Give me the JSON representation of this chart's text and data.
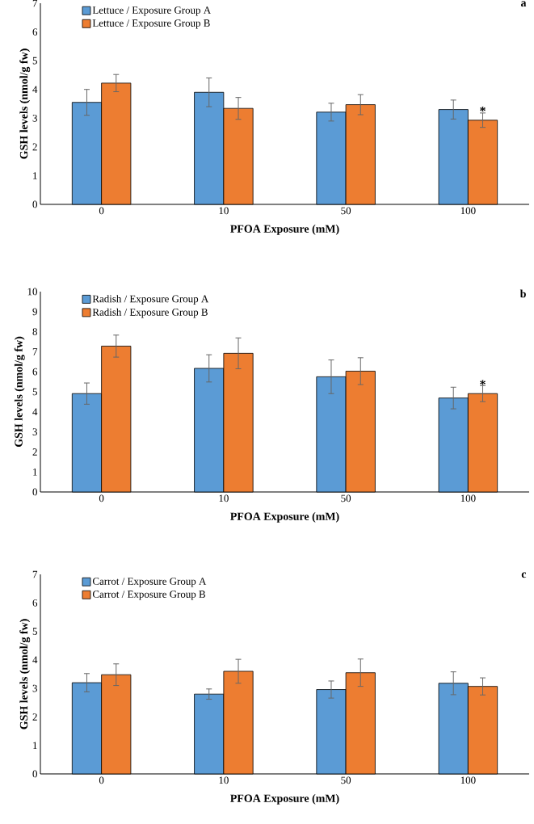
{
  "chart_data": [
    {
      "type": "bar",
      "title": "a",
      "xlabel": "PFOA Exposure (mM)",
      "ylabel": "GSH levels (nmol/g fw)",
      "categories": [
        "0",
        "10",
        "50",
        "100"
      ],
      "series": [
        {
          "name": "Lettuce / Exposure Group A",
          "color": "#5b9bd5",
          "values": [
            3.55,
            3.9,
            3.21,
            3.3
          ],
          "errors": [
            0.45,
            0.5,
            0.31,
            0.33
          ]
        },
        {
          "name": "Lettuce / Exposure Group B",
          "color": "#ed7d31",
          "values": [
            4.22,
            3.34,
            3.47,
            2.93
          ],
          "errors": [
            0.3,
            0.38,
            0.35,
            0.25
          ]
        }
      ],
      "ylim": [
        0,
        7
      ],
      "yticks": [
        0,
        1,
        2,
        3,
        4,
        5,
        6,
        7
      ],
      "legend": "top left",
      "annotations": [
        "*"
      ]
    },
    {
      "type": "bar",
      "title": "b",
      "xlabel": "PFOA Exposure (mM)",
      "ylabel": "GSH levels (nmol/g fw)",
      "categories": [
        "0",
        "10",
        "50",
        "100"
      ],
      "series": [
        {
          "name": "Radish / Exposure Group A",
          "color": "#5b9bd5",
          "values": [
            4.91,
            6.17,
            5.75,
            4.69
          ],
          "errors": [
            0.53,
            0.68,
            0.84,
            0.54
          ]
        },
        {
          "name": "Radish / Exposure Group B",
          "color": "#ed7d31",
          "values": [
            7.28,
            6.92,
            6.03,
            4.91
          ],
          "errors": [
            0.55,
            0.77,
            0.67,
            0.4
          ]
        }
      ],
      "ylim": [
        0,
        10
      ],
      "yticks": [
        0,
        1,
        2,
        3,
        4,
        5,
        6,
        7,
        8,
        9,
        10
      ],
      "legend": "top left",
      "annotations": [
        "*"
      ]
    },
    {
      "type": "bar",
      "title": "c",
      "xlabel": "PFOA Exposure (mM)",
      "ylabel": "GSH levels (nmol/g fw)",
      "categories": [
        "0",
        "10",
        "50",
        "100"
      ],
      "series": [
        {
          "name": "Carrot / Exposure Group A",
          "color": "#5b9bd5",
          "values": [
            3.2,
            2.8,
            2.96,
            3.18
          ],
          "errors": [
            0.32,
            0.18,
            0.3,
            0.4
          ]
        },
        {
          "name": "Carrot / Exposure Group B",
          "color": "#ed7d31",
          "values": [
            3.48,
            3.6,
            3.55,
            3.07
          ],
          "errors": [
            0.38,
            0.42,
            0.48,
            0.3
          ]
        }
      ],
      "ylim": [
        0,
        7
      ],
      "yticks": [
        0,
        1,
        2,
        3,
        4,
        5,
        6,
        7
      ],
      "legend": "top left"
    }
  ]
}
